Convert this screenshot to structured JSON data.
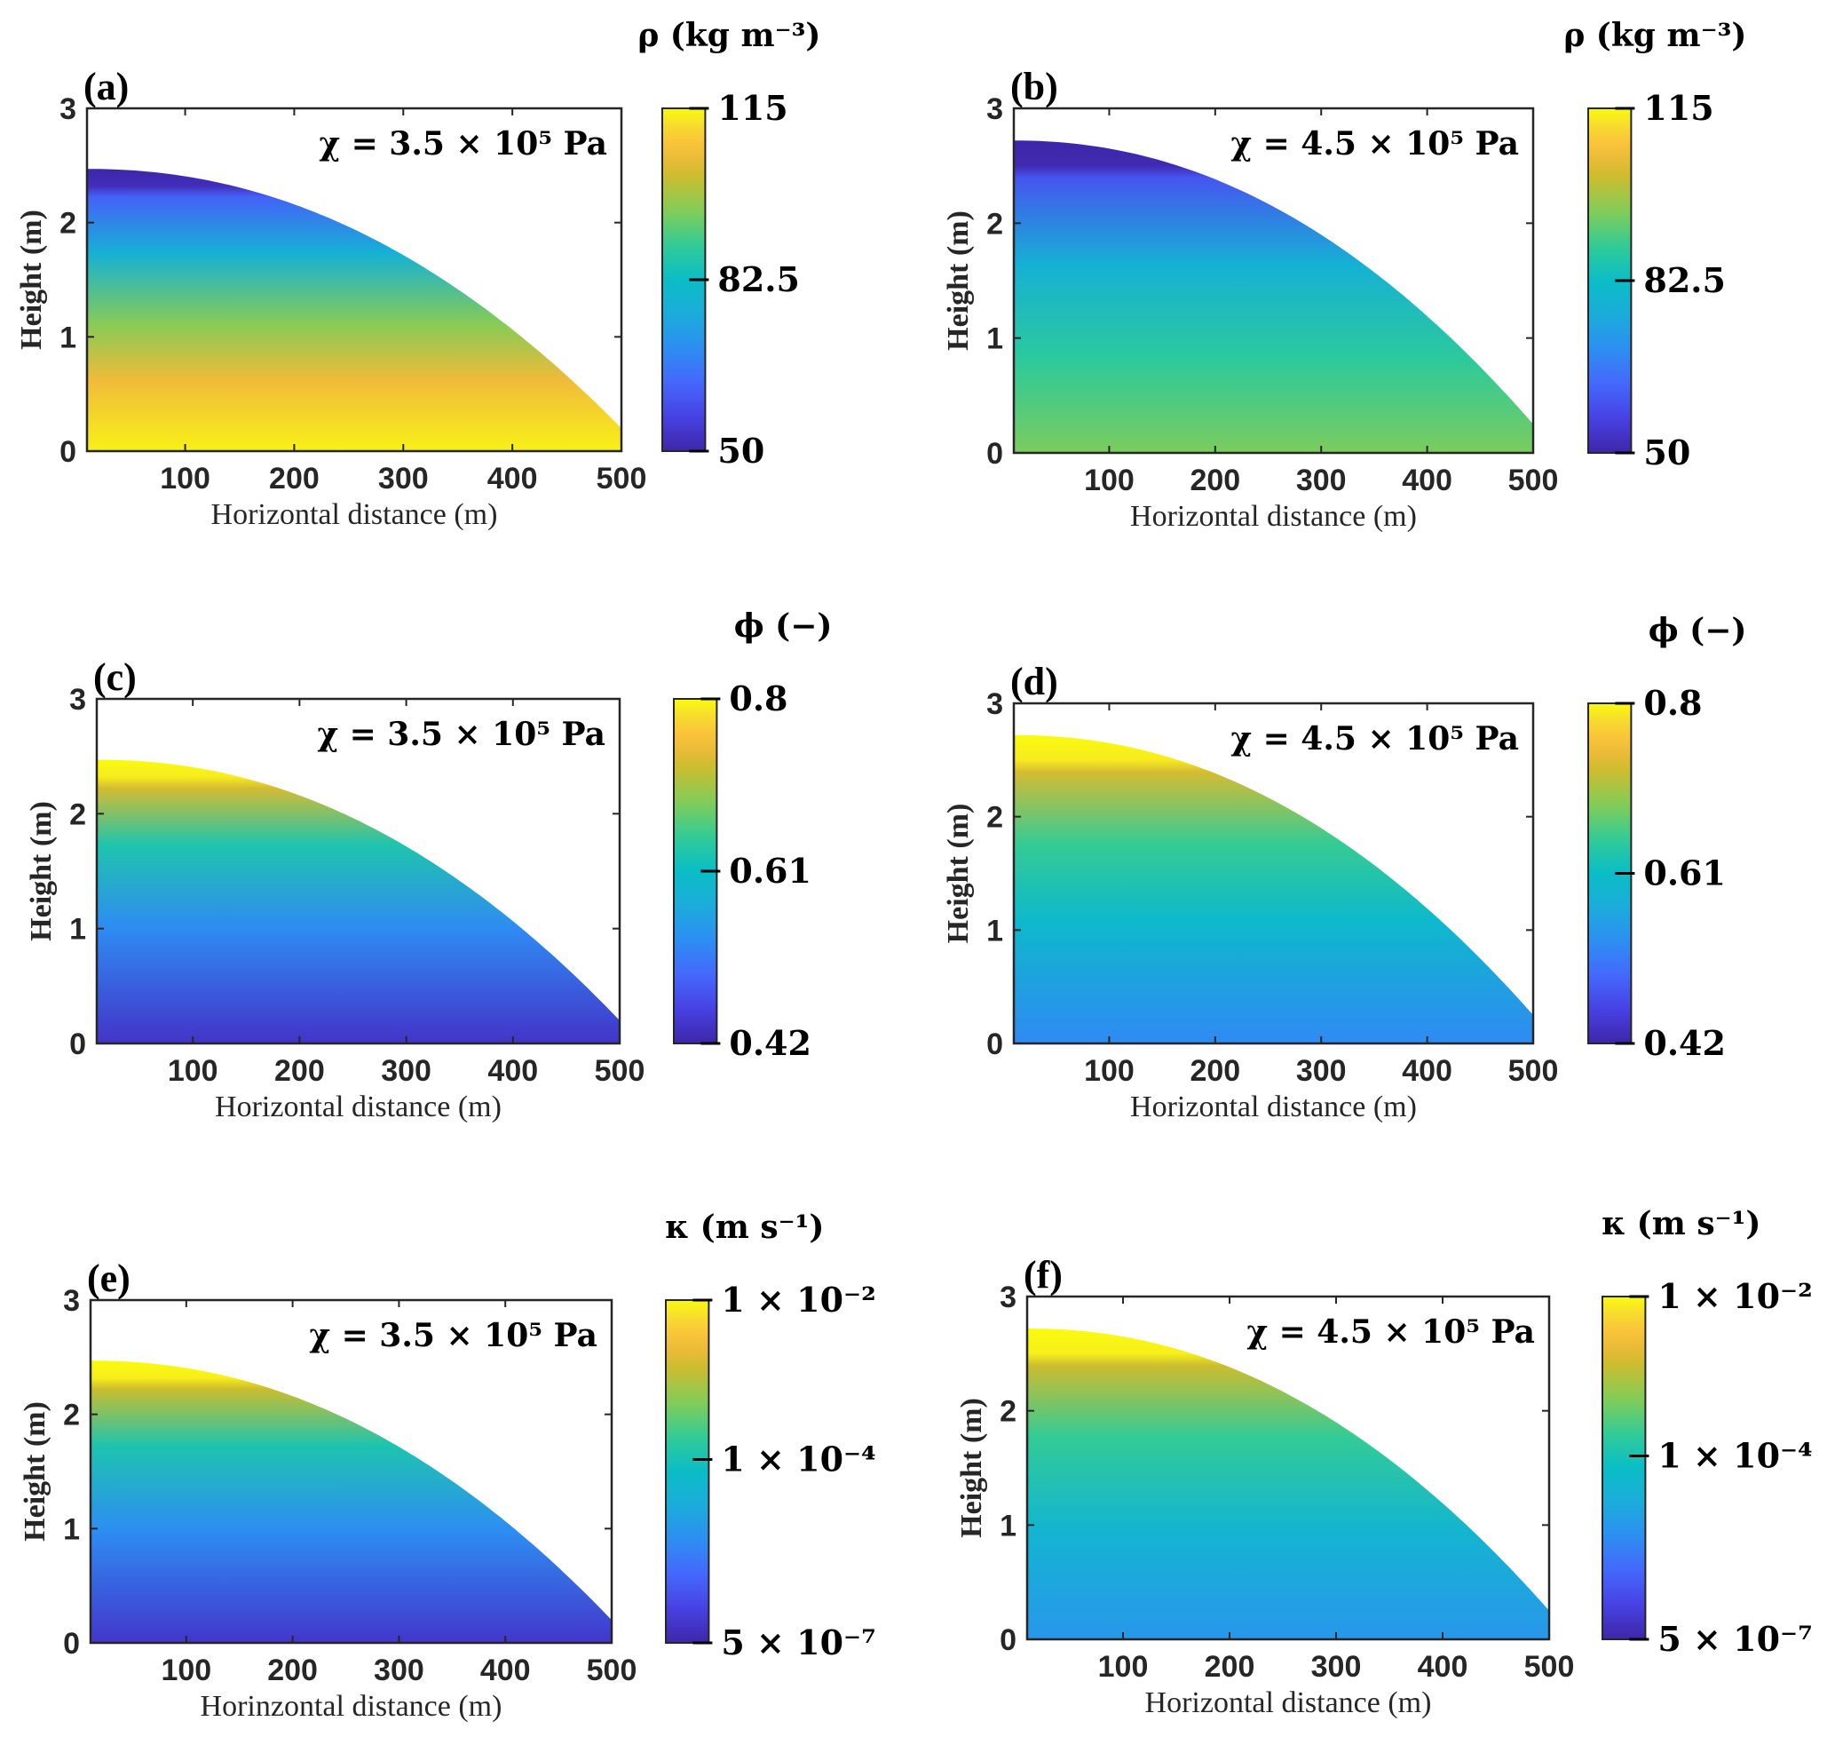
{
  "chart_data": [
    {
      "type": "heatmap",
      "panel_label": "(a)",
      "annotation": "χ = 3.5 × 10⁵  Pa",
      "xlabel": "Horizontal distance (m)",
      "ylabel": "Height (m)",
      "xlim": [
        10,
        500
      ],
      "ylim": [
        0,
        3
      ],
      "xticks": [
        100,
        200,
        300,
        400,
        500
      ],
      "yticks": [
        0,
        1,
        2,
        3
      ],
      "colorbar": {
        "title": "ρ (kg m⁻³)",
        "min": 50,
        "max": 115,
        "ticks": [
          "115",
          "82.5",
          "50"
        ],
        "tick_values": [
          115,
          82.5,
          50
        ],
        "scale": "linear"
      },
      "surface": {
        "crest_height": 2.47,
        "end_height": 0.2
      },
      "field_description": "Density high (~115) near base, decreasing with height to ~50 at the upper free surface band",
      "field_stops": [
        {
          "depth_frac": 0.0,
          "value": 50
        },
        {
          "depth_frac": 0.06,
          "value": 52
        },
        {
          "depth_frac": 0.1,
          "value": 62
        },
        {
          "depth_frac": 0.3,
          "value": 78
        },
        {
          "depth_frac": 0.55,
          "value": 96
        },
        {
          "depth_frac": 0.75,
          "value": 106
        },
        {
          "depth_frac": 1.0,
          "value": 114
        }
      ]
    },
    {
      "type": "heatmap",
      "panel_label": "(b)",
      "annotation": "χ = 4.5 × 10⁵  Pa",
      "xlabel": "Horizontal distance (m)",
      "ylabel": "Height (m)",
      "xlim": [
        10,
        500
      ],
      "ylim": [
        0,
        3
      ],
      "xticks": [
        100,
        200,
        300,
        400,
        500
      ],
      "yticks": [
        0,
        1,
        2,
        3
      ],
      "colorbar": {
        "title": "ρ (kg m⁻³)",
        "min": 50,
        "max": 115,
        "ticks": [
          "115",
          "82.5",
          "50"
        ],
        "tick_values": [
          115,
          82.5,
          50
        ],
        "scale": "linear"
      },
      "surface": {
        "crest_height": 2.72,
        "end_height": 0.25
      },
      "field_description": "Density ~95 near base, decreasing with height to ~50 at the upper free surface band",
      "field_stops": [
        {
          "depth_frac": 0.0,
          "value": 50
        },
        {
          "depth_frac": 0.08,
          "value": 51
        },
        {
          "depth_frac": 0.12,
          "value": 60
        },
        {
          "depth_frac": 0.4,
          "value": 78
        },
        {
          "depth_frac": 0.7,
          "value": 88
        },
        {
          "depth_frac": 1.0,
          "value": 95
        }
      ]
    },
    {
      "type": "heatmap",
      "panel_label": "(c)",
      "annotation": "χ = 3.5 × 10⁵  Pa",
      "xlabel": "Horizontal distance (m)",
      "ylabel": "Height (m)",
      "xlim": [
        10,
        500
      ],
      "ylim": [
        0,
        3
      ],
      "xticks": [
        100,
        200,
        300,
        400,
        500
      ],
      "yticks": [
        0,
        1,
        2,
        3
      ],
      "colorbar": {
        "title": "ϕ (−)",
        "min": 0.42,
        "max": 0.8,
        "ticks": [
          "0.8",
          "0.61",
          "0.42"
        ],
        "tick_values": [
          0.8,
          0.61,
          0.42
        ],
        "scale": "linear"
      },
      "surface": {
        "crest_height": 2.47,
        "end_height": 0.2
      },
      "field_description": "Porosity ~0.8 at top surface band, decreasing with depth to ~0.43 at base",
      "field_stops": [
        {
          "depth_frac": 0.0,
          "value": 0.8
        },
        {
          "depth_frac": 0.06,
          "value": 0.79
        },
        {
          "depth_frac": 0.1,
          "value": 0.73
        },
        {
          "depth_frac": 0.3,
          "value": 0.63
        },
        {
          "depth_frac": 0.6,
          "value": 0.53
        },
        {
          "depth_frac": 1.0,
          "value": 0.44
        }
      ]
    },
    {
      "type": "heatmap",
      "panel_label": "(d)",
      "annotation": "χ = 4.5 × 10⁵  Pa",
      "xlabel": "Horizontal distance (m)",
      "ylabel": "Height (m)",
      "xlim": [
        10,
        500
      ],
      "ylim": [
        0,
        3
      ],
      "xticks": [
        100,
        200,
        300,
        400,
        500
      ],
      "yticks": [
        0,
        1,
        2,
        3
      ],
      "colorbar": {
        "title": "ϕ (−)",
        "min": 0.42,
        "max": 0.8,
        "ticks": [
          "0.8",
          "0.61",
          "0.42"
        ],
        "tick_values": [
          0.8,
          0.61,
          0.42
        ],
        "scale": "linear"
      },
      "surface": {
        "crest_height": 2.72,
        "end_height": 0.25
      },
      "field_description": "Porosity ~0.8 at top surface band, decreasing with depth to ~0.52 at base",
      "field_stops": [
        {
          "depth_frac": 0.0,
          "value": 0.8
        },
        {
          "depth_frac": 0.08,
          "value": 0.79
        },
        {
          "depth_frac": 0.12,
          "value": 0.73
        },
        {
          "depth_frac": 0.35,
          "value": 0.65
        },
        {
          "depth_frac": 0.6,
          "value": 0.6
        },
        {
          "depth_frac": 1.0,
          "value": 0.53
        }
      ]
    },
    {
      "type": "heatmap",
      "panel_label": "(e)",
      "annotation": "χ = 3.5 × 10⁵  Pa",
      "xlabel": "Horinzontal distance (m)",
      "ylabel": "Height (m)",
      "xlim": [
        10,
        500
      ],
      "ylim": [
        0,
        3
      ],
      "xticks": [
        100,
        200,
        300,
        400,
        500
      ],
      "yticks": [
        0,
        1,
        2,
        3
      ],
      "colorbar": {
        "title": "κ (m s⁻¹)",
        "min": 5e-07,
        "max": 0.01,
        "ticks": [
          "1 × 10⁻²",
          "1 × 10⁻⁴",
          "5 × 10⁻⁷"
        ],
        "tick_values": [
          0.01,
          0.0001,
          5e-07
        ],
        "scale": "log"
      },
      "surface": {
        "crest_height": 2.47,
        "end_height": 0.2
      },
      "field_description": "Hydraulic conductivity ~1e-2 at top surface band, decreasing with depth to ~1e-6 at base",
      "field_stops": [
        {
          "depth_frac": 0.0,
          "value_frac": 1.0
        },
        {
          "depth_frac": 0.06,
          "value_frac": 0.98
        },
        {
          "depth_frac": 0.1,
          "value_frac": 0.8
        },
        {
          "depth_frac": 0.3,
          "value_frac": 0.55
        },
        {
          "depth_frac": 0.6,
          "value_frac": 0.3
        },
        {
          "depth_frac": 1.0,
          "value_frac": 0.06
        }
      ]
    },
    {
      "type": "heatmap",
      "panel_label": "(f)",
      "annotation": "χ = 4.5 × 10⁵  Pa",
      "xlabel": "Horizontal distance (m)",
      "ylabel": "Height (m)",
      "xlim": [
        10,
        500
      ],
      "ylim": [
        0,
        3
      ],
      "xticks": [
        100,
        200,
        300,
        400,
        500
      ],
      "yticks": [
        0,
        1,
        2,
        3
      ],
      "colorbar": {
        "title": "κ (m s⁻¹)",
        "min": 5e-07,
        "max": 0.01,
        "ticks": [
          "1 × 10⁻²",
          "1 × 10⁻⁴",
          "5 × 10⁻⁷"
        ],
        "tick_values": [
          0.01,
          0.0001,
          5e-07
        ],
        "scale": "log"
      },
      "surface": {
        "crest_height": 2.72,
        "end_height": 0.25
      },
      "field_description": "Hydraulic conductivity ~1e-2 at top surface band, decreasing with depth to ~1e-5 at base",
      "field_stops": [
        {
          "depth_frac": 0.0,
          "value_frac": 1.0
        },
        {
          "depth_frac": 0.08,
          "value_frac": 0.98
        },
        {
          "depth_frac": 0.12,
          "value_frac": 0.8
        },
        {
          "depth_frac": 0.35,
          "value_frac": 0.6
        },
        {
          "depth_frac": 0.65,
          "value_frac": 0.45
        },
        {
          "depth_frac": 1.0,
          "value_frac": 0.33
        }
      ]
    }
  ]
}
